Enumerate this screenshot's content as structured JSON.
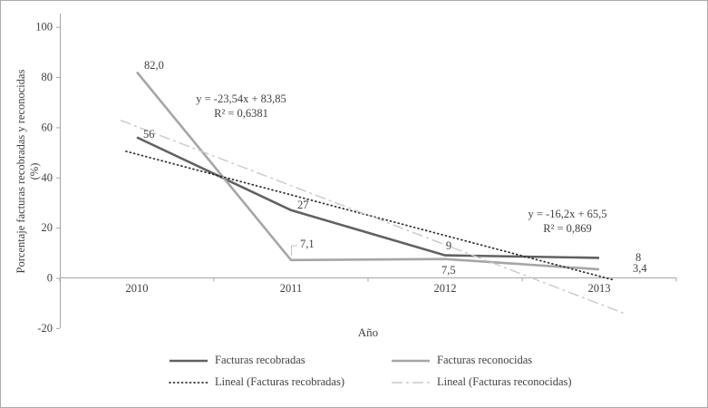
{
  "chart_data": {
    "type": "line",
    "title": "",
    "xlabel": "Año",
    "ylabel": "Porcentaje facturas recobradas y reconocidas (%)",
    "ylabel_line1": "Porcentaje facturas recobradas y reconocidas",
    "ylabel_line2": "(%)",
    "categories": [
      "2010",
      "2011",
      "2012",
      "2013"
    ],
    "y_ticks": [
      100,
      80,
      60,
      40,
      20,
      0,
      -20
    ],
    "ylim": [
      -20,
      100
    ],
    "grid": false,
    "legend_position": "bottom",
    "series": [
      {
        "name": "Facturas recobradas",
        "values": [
          56,
          27,
          9,
          8
        ],
        "point_labels": [
          "56",
          "27",
          "9",
          "8"
        ],
        "color": "#616161",
        "style": "solid"
      },
      {
        "name": "Facturas reconocidas",
        "values": [
          82.0,
          7.1,
          7.5,
          3.4
        ],
        "point_labels": [
          "82,0",
          "7,1",
          "7,5",
          "3,4"
        ],
        "color": "#a6a6a6",
        "style": "solid"
      },
      {
        "name": "Lineal (Facturas recobradas)",
        "trend": {
          "slope": -16.2,
          "intercept": 65.5,
          "r_squared": 0.869
        },
        "color": "#2e2e2e",
        "style": "dotted"
      },
      {
        "name": "Lineal (Facturas reconocidas)",
        "trend": {
          "slope": -23.54,
          "intercept": 83.85,
          "r_squared": 0.6381
        },
        "color": "#c9c9c9",
        "style": "dashdot"
      }
    ],
    "annotations": [
      {
        "line1": "y = -23,54x + 83,85",
        "line2": "R² = 0,6381"
      },
      {
        "line1": "y = -16,2x + 65,5",
        "line2": "R² = 0,869"
      }
    ]
  }
}
